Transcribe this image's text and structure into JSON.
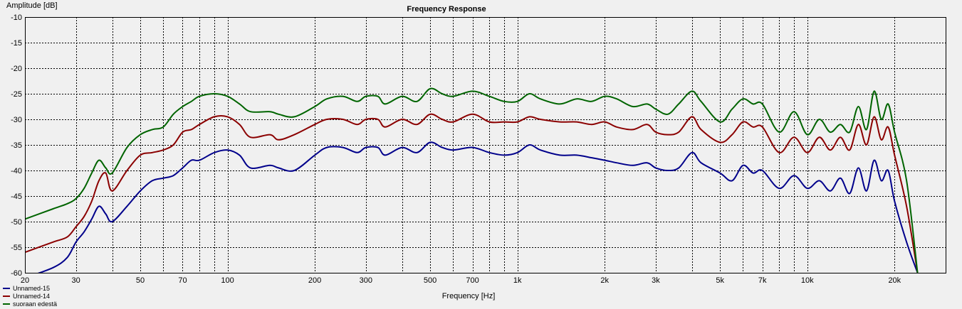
{
  "chart_data": {
    "type": "line",
    "title": "Frequency Response",
    "xlabel": "Frequency [Hz]",
    "ylabel": "Amplitude [dB]",
    "xscale": "log",
    "xlim": [
      20,
      30000
    ],
    "ylim": [
      -60,
      -10
    ],
    "grid": true,
    "legend_position": "bottom-left",
    "xticks": [
      20,
      30,
      50,
      70,
      100,
      200,
      300,
      500,
      700,
      1000,
      2000,
      3000,
      5000,
      7000,
      10000,
      20000
    ],
    "xtick_labels": [
      "20",
      "30",
      "50",
      "70",
      "100",
      "200",
      "300",
      "500",
      "700",
      "1k",
      "2k",
      "3k",
      "5k",
      "7k",
      "10k",
      "20k"
    ],
    "yticks": [
      -60,
      -55,
      -50,
      -45,
      -40,
      -35,
      -30,
      -25,
      -20,
      -15,
      -10
    ],
    "series": [
      {
        "name": "Unnamed-15",
        "color": "#00008b",
        "x": [
          20,
          25,
          28,
          30,
          32,
          34,
          36,
          38,
          40,
          45,
          50,
          55,
          60,
          65,
          70,
          75,
          80,
          90,
          100,
          110,
          120,
          140,
          150,
          170,
          200,
          220,
          250,
          280,
          300,
          330,
          350,
          400,
          450,
          500,
          550,
          600,
          700,
          800,
          900,
          1000,
          1100,
          1200,
          1400,
          1600,
          1800,
          2000,
          2200,
          2500,
          2800,
          3000,
          3300,
          3600,
          4000,
          4300,
          5000,
          5500,
          6000,
          6500,
          7000,
          8000,
          9000,
          10000,
          11000,
          12000,
          13000,
          14000,
          15000,
          16000,
          17000,
          18000,
          19000,
          20000,
          22000,
          24000
        ],
        "y": [
          -61,
          -59,
          -57,
          -54,
          -52,
          -49.5,
          -47,
          -48.5,
          -50,
          -47,
          -44,
          -42,
          -41.5,
          -41,
          -39.5,
          -38,
          -38,
          -36.5,
          -36,
          -37,
          -39.5,
          -39,
          -39.5,
          -40,
          -37,
          -35.5,
          -35.5,
          -36.5,
          -35.5,
          -35.5,
          -37,
          -35.5,
          -36.5,
          -34.5,
          -35.5,
          -36,
          -35.5,
          -36.5,
          -37,
          -36.5,
          -35,
          -36,
          -37,
          -37,
          -37.5,
          -38,
          -38.5,
          -39,
          -38.5,
          -39.5,
          -40,
          -39.5,
          -36.5,
          -38.5,
          -40.5,
          -42,
          -39,
          -40.5,
          -40,
          -43.5,
          -41,
          -43.5,
          -42,
          -44,
          -41.5,
          -44.5,
          -39.5,
          -44,
          -38,
          -42,
          -40,
          -46,
          -54,
          -60
        ]
      },
      {
        "name": "Unnamed-14",
        "color": "#8b0000",
        "x": [
          20,
          25,
          28,
          30,
          32,
          34,
          36,
          38,
          40,
          45,
          50,
          55,
          60,
          65,
          70,
          75,
          80,
          90,
          100,
          110,
          120,
          140,
          150,
          170,
          200,
          220,
          250,
          280,
          300,
          330,
          350,
          400,
          450,
          500,
          550,
          600,
          700,
          800,
          900,
          1000,
          1100,
          1200,
          1400,
          1600,
          1800,
          2000,
          2200,
          2500,
          2800,
          3000,
          3300,
          3600,
          4000,
          4300,
          5000,
          5500,
          6000,
          6500,
          7000,
          8000,
          9000,
          10000,
          11000,
          12000,
          13000,
          14000,
          15000,
          16000,
          17000,
          18000,
          19000,
          20000,
          22000,
          24000
        ],
        "y": [
          -56,
          -54,
          -53,
          -51,
          -49,
          -46,
          -42,
          -40.5,
          -44,
          -40,
          -37,
          -36.5,
          -36,
          -35,
          -32.5,
          -32,
          -31,
          -29.5,
          -29.5,
          -31,
          -33.5,
          -33,
          -34,
          -33,
          -31,
          -30,
          -30,
          -31,
          -30,
          -30,
          -31.5,
          -30,
          -31,
          -29,
          -30,
          -30.5,
          -29,
          -30.5,
          -30.5,
          -30.5,
          -29.5,
          -30,
          -30.5,
          -30.5,
          -31,
          -30.5,
          -31.5,
          -32,
          -31,
          -32.5,
          -33,
          -32.5,
          -29.5,
          -32,
          -34.5,
          -33,
          -30.5,
          -31.5,
          -31.5,
          -36.5,
          -33.5,
          -36.5,
          -33.5,
          -36,
          -33.5,
          -36,
          -31,
          -35,
          -29.5,
          -34,
          -31.5,
          -37,
          -47,
          -60
        ]
      },
      {
        "name": "suoraan edestä",
        "color": "#006400",
        "x": [
          20,
          25,
          28,
          30,
          32,
          34,
          36,
          38,
          40,
          45,
          50,
          55,
          60,
          65,
          70,
          75,
          80,
          90,
          100,
          110,
          120,
          140,
          150,
          170,
          200,
          220,
          250,
          280,
          300,
          330,
          350,
          400,
          450,
          500,
          550,
          600,
          700,
          800,
          900,
          1000,
          1100,
          1200,
          1400,
          1600,
          1800,
          2000,
          2200,
          2500,
          2800,
          3000,
          3300,
          3600,
          4000,
          4300,
          5000,
          5500,
          6000,
          6500,
          7000,
          8000,
          9000,
          10000,
          11000,
          12000,
          13000,
          14000,
          15000,
          16000,
          17000,
          18000,
          19000,
          20000,
          22000,
          24000
        ],
        "y": [
          -49.5,
          -47.5,
          -46.5,
          -45.5,
          -43.5,
          -40.5,
          -38,
          -39.5,
          -40.5,
          -35.5,
          -33,
          -32,
          -31.5,
          -29,
          -27.5,
          -26.5,
          -25.5,
          -25,
          -25.5,
          -27,
          -28.5,
          -28.5,
          -29,
          -29.5,
          -27.5,
          -26,
          -25.5,
          -26.5,
          -25.5,
          -25.5,
          -27,
          -25.5,
          -26.5,
          -24,
          -25,
          -25.5,
          -24.5,
          -25.5,
          -26.5,
          -26.5,
          -25,
          -26,
          -27,
          -26,
          -26.5,
          -25.5,
          -26,
          -27.5,
          -27,
          -28,
          -29,
          -27,
          -24.5,
          -26.5,
          -30.5,
          -28,
          -26,
          -27,
          -27,
          -32.5,
          -28.5,
          -33,
          -30,
          -32.5,
          -31,
          -32.5,
          -27.5,
          -32,
          -24.5,
          -30,
          -27,
          -32.5,
          -42,
          -60
        ]
      }
    ]
  }
}
